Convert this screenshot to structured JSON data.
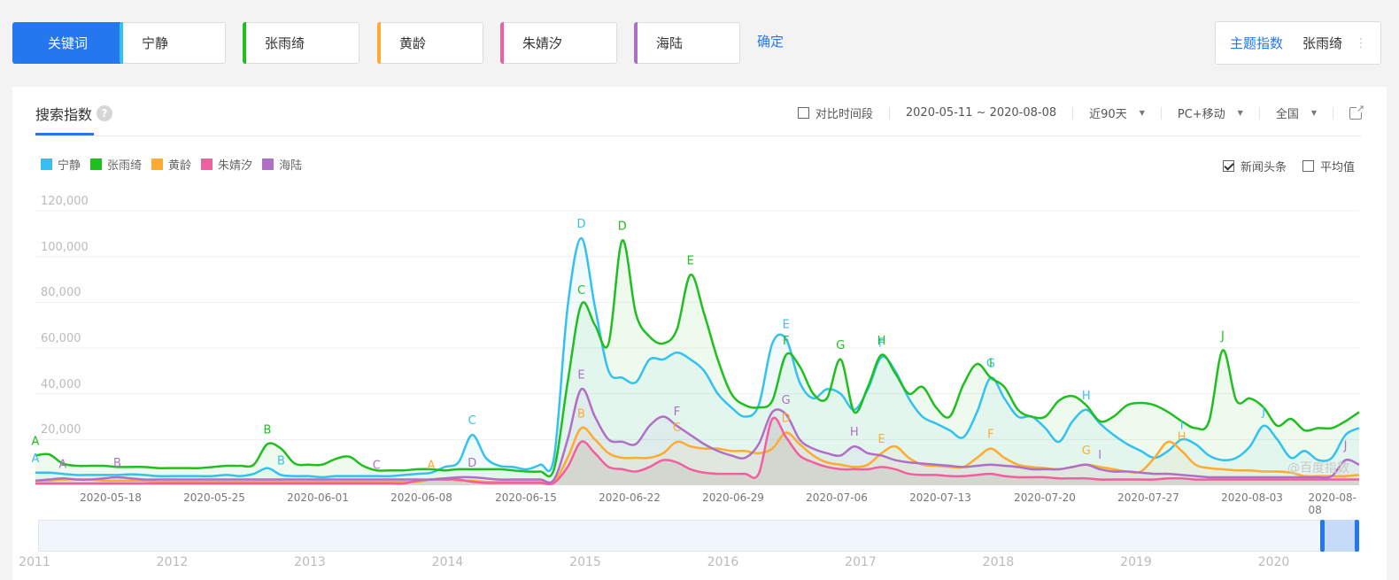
{
  "topbar": {
    "keyword_button": "关键词",
    "keywords": [
      {
        "label": "宁静",
        "color": "#33c2f0"
      },
      {
        "label": "张雨绮",
        "color": "#1fbf1f"
      },
      {
        "label": "黄龄",
        "color": "#ffaa30"
      },
      {
        "label": "朱婧汐",
        "color": "#f25ea0"
      },
      {
        "label": "海陆",
        "color": "#b06fc6"
      }
    ],
    "confirm": "确定",
    "theme_index_label": "主题指数",
    "theme_keyword": "张雨绮",
    "more_icon": "⋮"
  },
  "card": {
    "tab_title": "搜索指数",
    "help_icon": "?",
    "toolbar": {
      "compare_label": "对比时间段",
      "date_range": "2020-05-11 ~ 2020-08-08",
      "period": "近90天",
      "device": "PC+移动",
      "region": "全国"
    },
    "options": {
      "news_label": "新闻头条",
      "news_checked": true,
      "avg_label": "平均值",
      "avg_checked": false
    },
    "watermark": "@百度指数"
  },
  "chart_data": {
    "type": "line",
    "title": "搜索指数",
    "xlabel": "",
    "ylabel": "",
    "ylim": [
      0,
      120000
    ],
    "y_ticks": [
      "20,000",
      "40,000",
      "60,000",
      "80,000",
      "100,000",
      "120,000"
    ],
    "x_tick_labels": [
      "2020-05-18",
      "2020-05-25",
      "2020-06-01",
      "2020-06-08",
      "2020-06-15",
      "2020-06-22",
      "2020-06-29",
      "2020-07-06",
      "2020-07-13",
      "2020-07-20",
      "2020-07-27",
      "2020-08-03",
      "2020-08-08"
    ],
    "x_start": "2020-05-11",
    "x_end": "2020-08-08",
    "grid": true,
    "legend_position": "top-left",
    "series": [
      {
        "name": "宁静",
        "color": "#33c2f0",
        "values": [
          5500,
          5500,
          5000,
          4500,
          4500,
          4500,
          4500,
          4800,
          4500,
          4000,
          4000,
          4000,
          4000,
          4000,
          4500,
          4000,
          5000,
          7500,
          4500,
          4000,
          4000,
          3500,
          4000,
          4000,
          4000,
          4000,
          4000,
          4500,
          5000,
          5500,
          8000,
          10000,
          22000,
          12000,
          8500,
          8000,
          7000,
          9000,
          12000,
          78000,
          108000,
          78000,
          50000,
          47000,
          45000,
          55000,
          55000,
          58000,
          55000,
          50000,
          40000,
          34000,
          30000,
          35000,
          62000,
          64000,
          45000,
          38000,
          42000,
          40000,
          33000,
          42000,
          56000,
          50000,
          38000,
          30000,
          27000,
          24000,
          21000,
          32000,
          47000,
          38000,
          30000,
          30000,
          25000,
          19000,
          28000,
          33000,
          27000,
          22000,
          18000,
          15000,
          12000,
          15000,
          20000,
          18000,
          13000,
          11000,
          12000,
          17000,
          26000,
          20000,
          12000,
          15000,
          11000,
          12000,
          22000,
          25000
        ]
      },
      {
        "name": "张雨绮",
        "color": "#1fbf1f",
        "values": [
          13000,
          13500,
          9500,
          8500,
          8500,
          8500,
          8000,
          8000,
          8000,
          7500,
          7500,
          7500,
          7500,
          8000,
          8500,
          8500,
          9000,
          18000,
          16000,
          9500,
          9000,
          9000,
          11500,
          12500,
          8500,
          6500,
          6500,
          6500,
          7000,
          7000,
          6500,
          7000,
          7000,
          7000,
          7000,
          6500,
          6000,
          6000,
          7000,
          45000,
          79000,
          70000,
          62000,
          107000,
          75000,
          65000,
          62000,
          68000,
          92000,
          75000,
          55000,
          40000,
          35000,
          34000,
          37000,
          57000,
          52000,
          40000,
          38000,
          55000,
          32000,
          43000,
          57000,
          49000,
          40000,
          43000,
          34000,
          30000,
          44000,
          53000,
          47000,
          43000,
          33000,
          30000,
          30000,
          37000,
          39000,
          35000,
          28000,
          30000,
          35000,
          36000,
          35000,
          32000,
          28000,
          25000,
          28000,
          59000,
          37000,
          38000,
          34000,
          26000,
          29000,
          24000,
          25000,
          25000,
          28000,
          32000
        ]
      },
      {
        "name": "黄龄",
        "color": "#ffaa30",
        "values": [
          2000,
          2000,
          2500,
          2500,
          2500,
          2000,
          2000,
          2000,
          2000,
          1500,
          1500,
          1500,
          1500,
          1500,
          1500,
          1500,
          1500,
          1500,
          1500,
          1500,
          1500,
          1500,
          1500,
          1500,
          1500,
          1500,
          1500,
          1500,
          1500,
          2500,
          3000,
          2000,
          2000,
          1500,
          1500,
          1500,
          1500,
          1500,
          1500,
          12000,
          25000,
          20000,
          14000,
          12000,
          12000,
          12000,
          14000,
          19000,
          17000,
          16000,
          16000,
          15000,
          15000,
          14000,
          16000,
          23000,
          18000,
          13000,
          10000,
          9000,
          8000,
          9000,
          14000,
          17000,
          12000,
          9000,
          8500,
          8000,
          8000,
          12000,
          16000,
          12000,
          9000,
          8000,
          7500,
          7000,
          8000,
          9000,
          8000,
          7000,
          6000,
          6000,
          12000,
          19000,
          15000,
          9000,
          7500,
          7000,
          6500,
          6500,
          6000,
          6000,
          5500,
          4000,
          4000,
          4000,
          4000,
          4500
        ]
      },
      {
        "name": "朱婧汐",
        "color": "#f25ea0",
        "values": [
          800,
          800,
          800,
          800,
          800,
          800,
          800,
          800,
          800,
          800,
          800,
          800,
          800,
          800,
          800,
          800,
          800,
          800,
          800,
          800,
          800,
          800,
          800,
          800,
          800,
          800,
          800,
          800,
          2000,
          2500,
          2500,
          2500,
          1500,
          1000,
          1000,
          1000,
          1000,
          1000,
          1000,
          8000,
          19000,
          14000,
          8000,
          7000,
          6000,
          8000,
          11000,
          10000,
          7000,
          5500,
          5000,
          5000,
          5000,
          5000,
          29000,
          21000,
          13000,
          10000,
          8000,
          7000,
          7000,
          7000,
          8000,
          7000,
          5000,
          4500,
          4500,
          4000,
          4000,
          4500,
          5000,
          4000,
          3500,
          3500,
          3500,
          3000,
          3000,
          3000,
          2500,
          2500,
          2500,
          2500,
          2500,
          3000,
          3000,
          2500,
          2500,
          2500,
          2500,
          2500,
          2500,
          2500,
          2500,
          2500,
          2500,
          2500,
          2500,
          2500
        ]
      },
      {
        "name": "海陆",
        "color": "#b06fc6",
        "values": [
          2000,
          2500,
          3000,
          2500,
          2500,
          3000,
          3500,
          3000,
          2500,
          2500,
          2500,
          2500,
          2500,
          2500,
          2500,
          2500,
          2500,
          2500,
          2500,
          2500,
          2500,
          2500,
          2500,
          2500,
          2500,
          2500,
          2500,
          2500,
          2500,
          2500,
          3000,
          3500,
          3500,
          3000,
          2500,
          2500,
          2500,
          2500,
          2500,
          20000,
          42000,
          30000,
          20000,
          19000,
          18000,
          26000,
          30000,
          26000,
          22000,
          18000,
          15000,
          13000,
          12000,
          18000,
          32000,
          31000,
          20000,
          16000,
          14000,
          13000,
          17000,
          14000,
          13000,
          11000,
          10000,
          9500,
          9000,
          8500,
          8000,
          8500,
          9000,
          8500,
          8000,
          7000,
          7000,
          7000,
          8000,
          9000,
          7000,
          6000,
          6000,
          5500,
          5000,
          5000,
          4500,
          4000,
          3500,
          3500,
          3500,
          3500,
          3500,
          3500,
          3500,
          3500,
          3500,
          4000,
          11000,
          9000
        ]
      }
    ],
    "annotations": [
      {
        "series": "张雨绮",
        "label": "A"
      },
      {
        "series": "张雨绮",
        "label": "B"
      },
      {
        "series": "张雨绮",
        "label": "C"
      },
      {
        "series": "张雨绮",
        "label": "D"
      },
      {
        "series": "张雨绮",
        "label": "E"
      },
      {
        "series": "张雨绮",
        "label": "F"
      },
      {
        "series": "张雨绮",
        "label": "G"
      },
      {
        "series": "张雨绮",
        "label": "H"
      },
      {
        "series": "张雨绮",
        "label": "I"
      },
      {
        "series": "张雨绮",
        "label": "J"
      },
      {
        "series": "宁静",
        "label": "A"
      },
      {
        "series": "宁静",
        "label": "B"
      },
      {
        "series": "宁静",
        "label": "C"
      },
      {
        "series": "宁静",
        "label": "D"
      },
      {
        "series": "宁静",
        "label": "E"
      },
      {
        "series": "宁静",
        "label": "F"
      },
      {
        "series": "宁静",
        "label": "G"
      },
      {
        "series": "宁静",
        "label": "H"
      },
      {
        "series": "宁静",
        "label": "I"
      },
      {
        "series": "宁静",
        "label": "J"
      },
      {
        "series": "黄龄",
        "label": "A"
      },
      {
        "series": "黄龄",
        "label": "B"
      },
      {
        "series": "黄龄",
        "label": "C"
      },
      {
        "series": "黄龄",
        "label": "D"
      },
      {
        "series": "黄龄",
        "label": "E"
      },
      {
        "series": "黄龄",
        "label": "F"
      },
      {
        "series": "黄龄",
        "label": "G"
      },
      {
        "series": "黄龄",
        "label": "H"
      },
      {
        "series": "海陆",
        "label": "A"
      },
      {
        "series": "海陆",
        "label": "B"
      },
      {
        "series": "海陆",
        "label": "C"
      },
      {
        "series": "海陆",
        "label": "D"
      },
      {
        "series": "海陆",
        "label": "E"
      },
      {
        "series": "海陆",
        "label": "F"
      },
      {
        "series": "海陆",
        "label": "G"
      },
      {
        "series": "海陆",
        "label": "H"
      },
      {
        "series": "海陆",
        "label": "I"
      },
      {
        "series": "海陆",
        "label": "J"
      }
    ]
  },
  "navigator": {
    "years": [
      "2011",
      "2012",
      "2013",
      "2014",
      "2015",
      "2016",
      "2017",
      "2018",
      "2019",
      "2020"
    ]
  }
}
